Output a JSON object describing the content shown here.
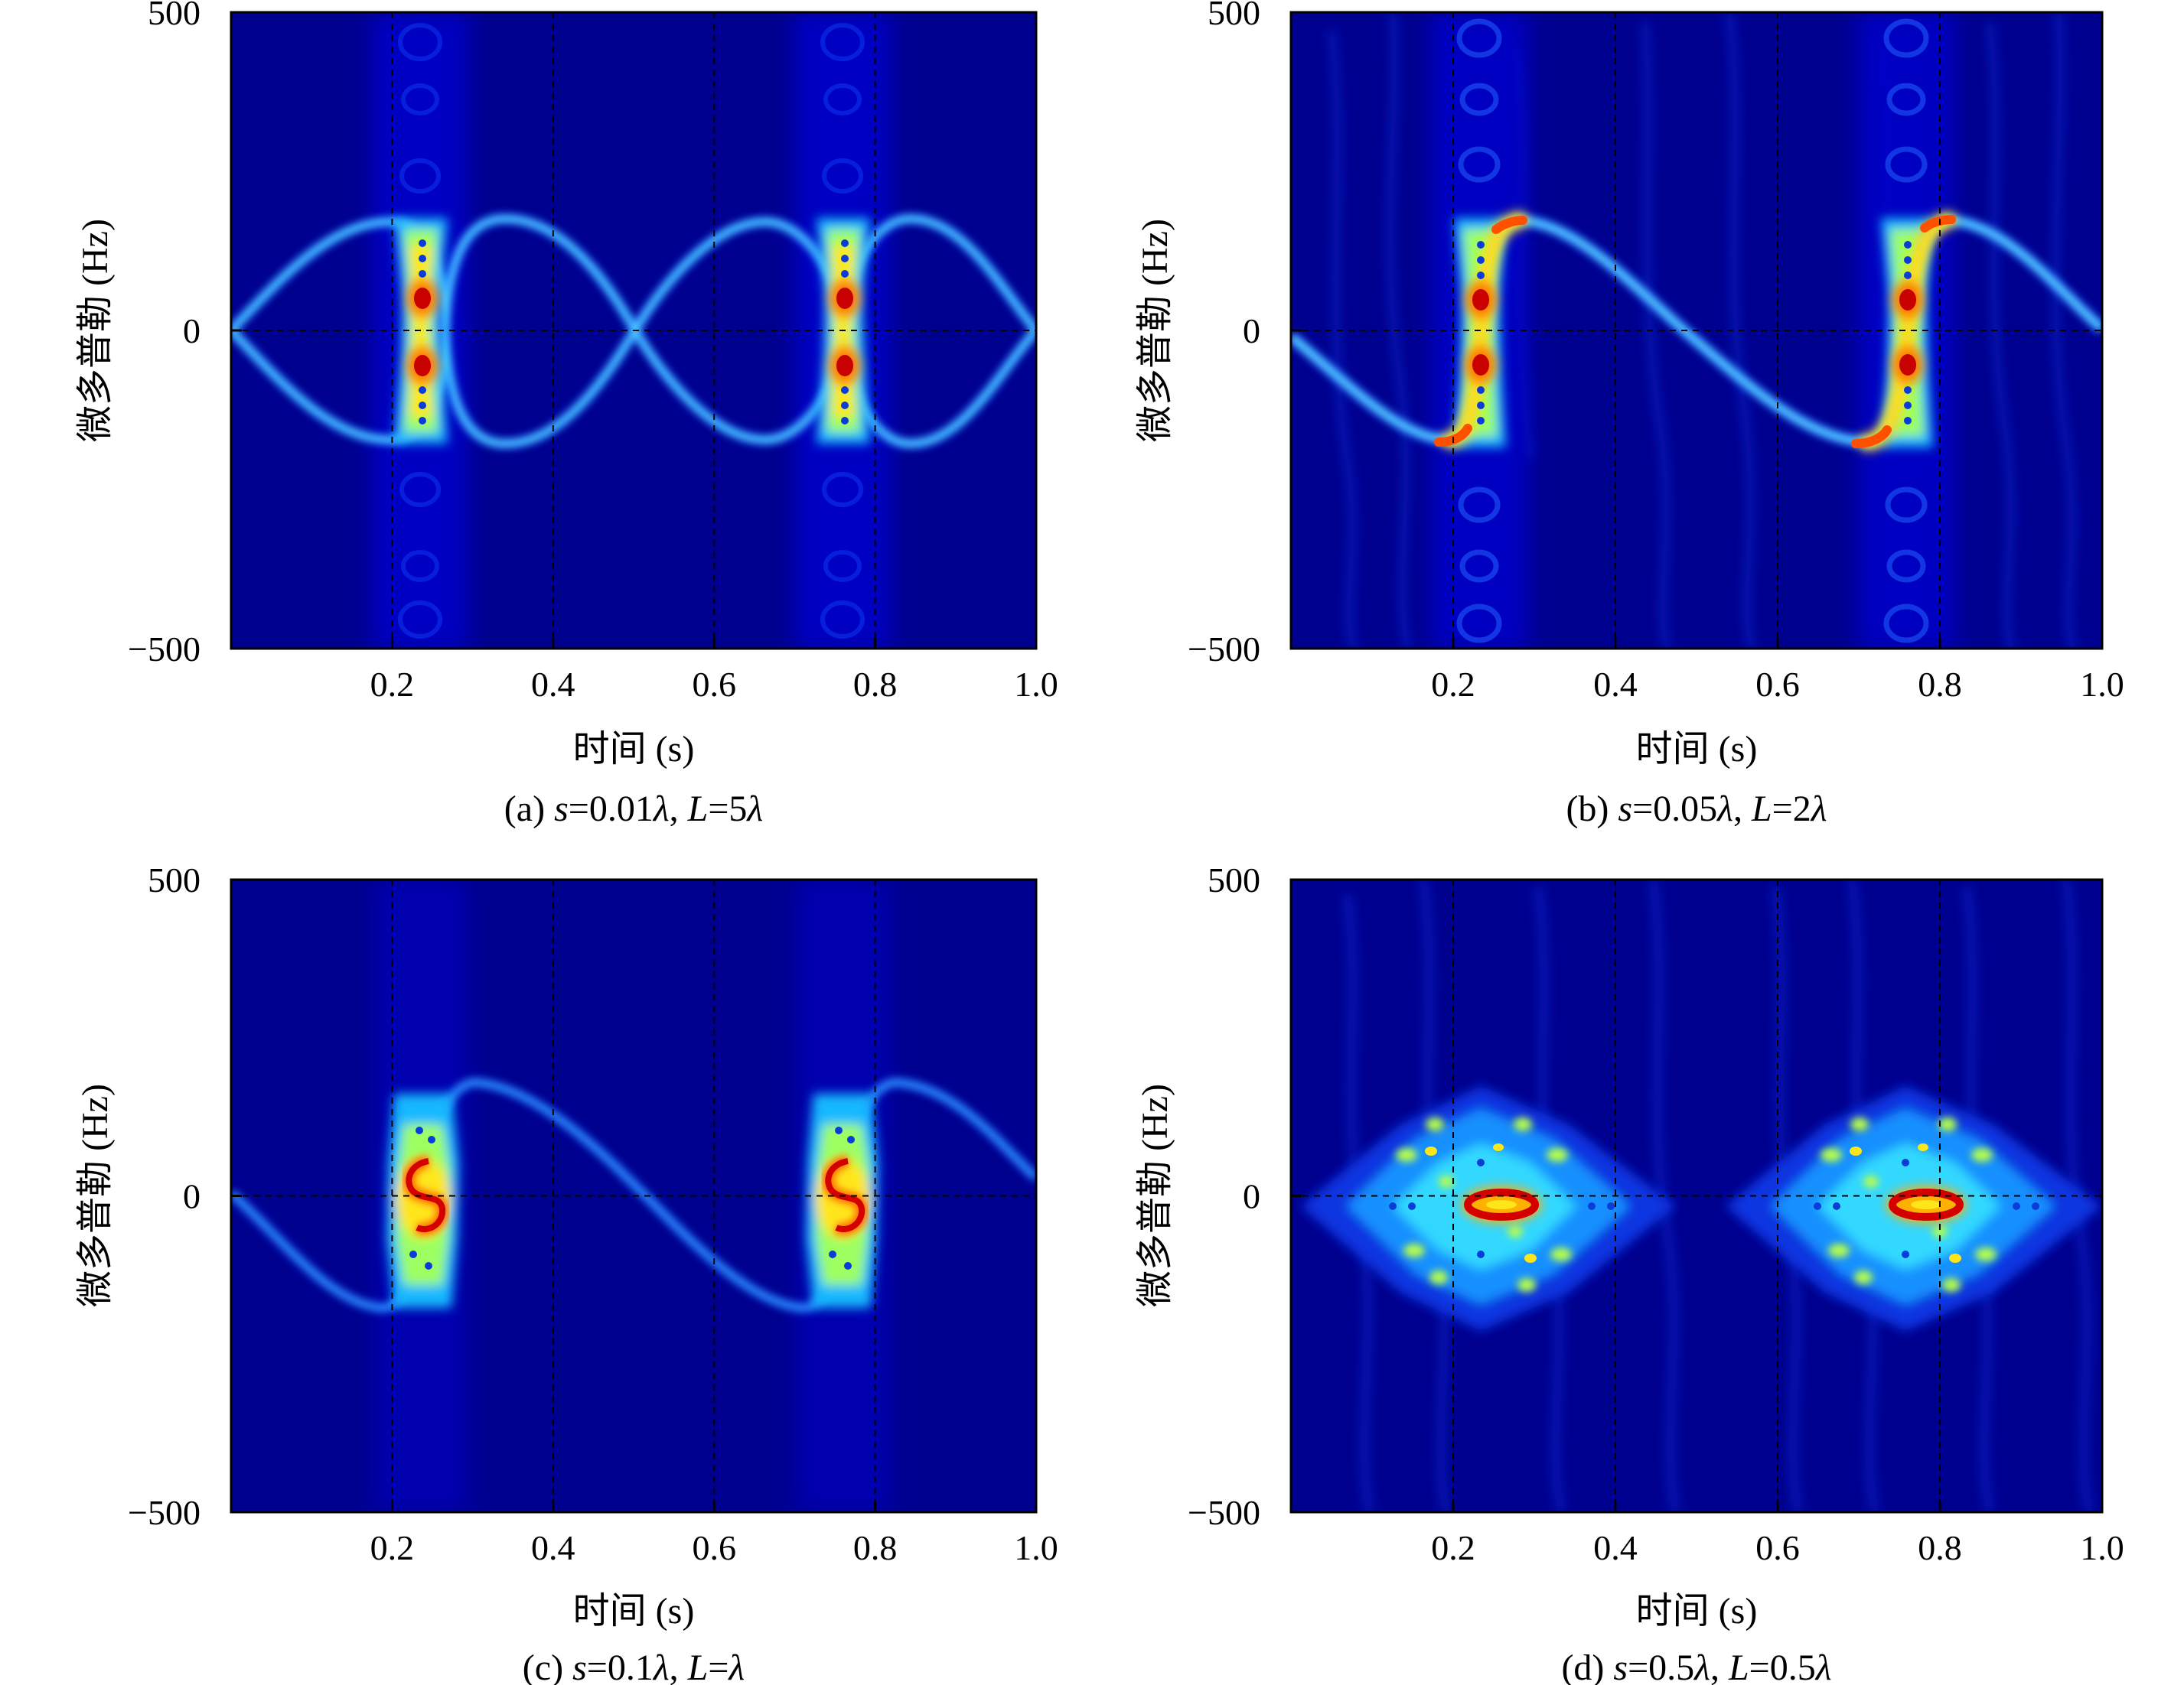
{
  "figure": {
    "panels": [
      {
        "id": "a",
        "caption": {
          "tag": "(a) ",
          "s_var": "s",
          "s_val": "=0.01",
          "lam": "λ",
          "sep": ", ",
          "L_var": "L",
          "L_val": "=5",
          "L_lam": "λ"
        },
        "xlabel": "时间 (s)",
        "ylabel": "微多普勒 (Hz)"
      },
      {
        "id": "b",
        "caption": {
          "tag": "(b) ",
          "s_var": "s",
          "s_val": "=0.05",
          "lam": "λ",
          "sep": ", ",
          "L_var": "L",
          "L_val": "=2",
          "L_lam": "λ"
        },
        "xlabel": "时间 (s)",
        "ylabel": "微多普勒 (Hz)"
      },
      {
        "id": "c",
        "caption": {
          "tag": "(c) ",
          "s_var": "s",
          "s_val": "=0.1",
          "lam": "λ",
          "sep": ", ",
          "L_var": "L",
          "L_val": "=",
          "L_lam": "λ"
        },
        "xlabel": "时间 (s)",
        "ylabel": "微多普勒 (Hz)"
      },
      {
        "id": "d",
        "caption": {
          "tag": "(d) ",
          "s_var": "s",
          "s_val": "=0.5",
          "lam": "λ",
          "sep": ", ",
          "L_var": "L",
          "L_val": "=0.5",
          "L_lam": "λ"
        },
        "xlabel": "时间 (s)",
        "ylabel": "微多普勒 (Hz)"
      }
    ]
  },
  "chart_data": [
    {
      "type": "heatmap",
      "panel": "a",
      "xlabel": "时间 (s)",
      "ylabel": "微多普勒 (Hz)",
      "xlim": [
        0,
        1.0
      ],
      "ylim": [
        -500,
        500
      ],
      "x_ticks": [
        0.2,
        0.4,
        0.6,
        0.8,
        1.0
      ],
      "x_tick_labels": [
        "0.2",
        "0.4",
        "0.6",
        "0.8",
        "1.0"
      ],
      "y_ticks": [
        500,
        0,
        -500
      ],
      "y_tick_labels": [
        "500",
        "0",
        "−500"
      ],
      "grid": true,
      "colormap": "jet",
      "background_color": "#00008f",
      "sinusoid": {
        "amplitude_hz": 180,
        "period_s": 0.5,
        "mirrored": true
      },
      "flash_times_s": [
        0.25,
        0.75
      ],
      "hot_spots_hz": [
        50,
        -55
      ]
    },
    {
      "type": "heatmap",
      "panel": "b",
      "xlabel": "时间 (s)",
      "ylabel": "微多普勒 (Hz)",
      "xlim": [
        0,
        1.0
      ],
      "ylim": [
        -500,
        500
      ],
      "x_ticks": [
        0.2,
        0.4,
        0.6,
        0.8,
        1.0
      ],
      "x_tick_labels": [
        "0.2",
        "0.4",
        "0.6",
        "0.8",
        "1.0"
      ],
      "y_ticks": [
        500,
        0,
        -500
      ],
      "y_tick_labels": [
        "500",
        "0",
        "−500"
      ],
      "grid": true,
      "colormap": "jet",
      "background_color": "#00008f",
      "sinusoid": {
        "amplitude_hz": 180,
        "period_s": 0.5,
        "mirrored": false,
        "sawtooth": true
      },
      "flash_times_s": [
        0.25,
        0.75
      ],
      "hot_spots_hz": [
        50,
        -50
      ]
    },
    {
      "type": "heatmap",
      "panel": "c",
      "xlabel": "时间 (s)",
      "ylabel": "微多普勒 (Hz)",
      "xlim": [
        0,
        1.0
      ],
      "ylim": [
        -500,
        500
      ],
      "x_ticks": [
        0.2,
        0.4,
        0.6,
        0.8,
        1.0
      ],
      "x_tick_labels": [
        "0.2",
        "0.4",
        "0.6",
        "0.8",
        "1.0"
      ],
      "y_ticks": [
        500,
        0,
        -500
      ],
      "y_tick_labels": [
        "500",
        "0",
        "−500"
      ],
      "grid": true,
      "colormap": "jet",
      "background_color": "#00008f",
      "sinusoid": {
        "amplitude_hz": 180,
        "period_s": 0.5,
        "mirrored": false,
        "sawtooth": true,
        "faint": true
      },
      "flash_times_s": [
        0.25,
        0.75
      ],
      "hot_spots_hz": [
        20,
        -20
      ]
    },
    {
      "type": "heatmap",
      "panel": "d",
      "xlabel": "时间 (s)",
      "ylabel": "微多普勒 (Hz)",
      "xlim": [
        0,
        1.0
      ],
      "ylim": [
        -500,
        500
      ],
      "x_ticks": [
        0.2,
        0.4,
        0.6,
        0.8,
        1.0
      ],
      "x_tick_labels": [
        "0.2",
        "0.4",
        "0.6",
        "0.8",
        "1.0"
      ],
      "y_ticks": [
        500,
        0,
        -500
      ],
      "y_tick_labels": [
        "500",
        "0",
        "−500"
      ],
      "grid": true,
      "colormap": "jet",
      "background_color": "#00008f",
      "sinusoid": {
        "amplitude_hz": 180,
        "period_s": 0.5,
        "diamond": true
      },
      "flash_times_s": [
        0.25,
        0.75
      ],
      "hot_spots_hz": [
        0
      ]
    }
  ]
}
